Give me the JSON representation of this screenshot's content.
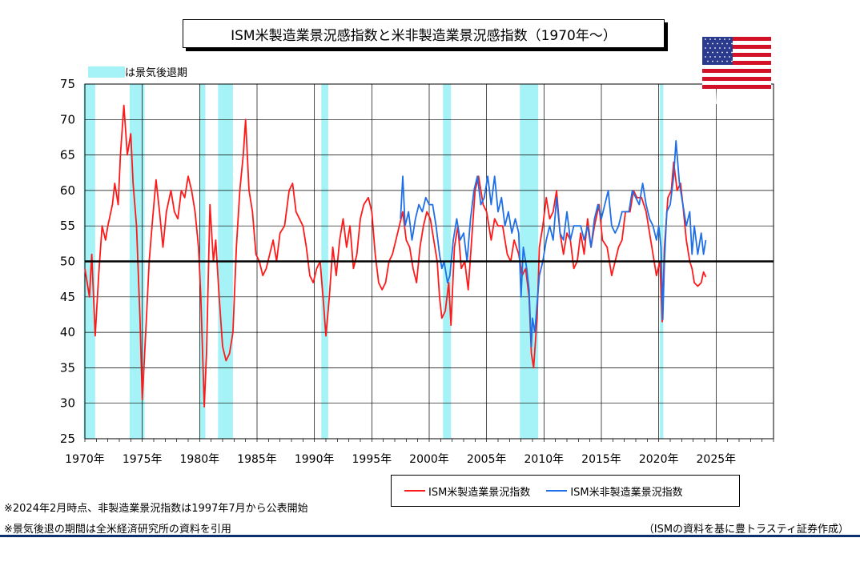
{
  "colors": {
    "manufacturing": "#ff1a1a",
    "non_manufacturing": "#1f6fe8",
    "recession": "#a6f3f7",
    "baseline": "#000000",
    "footer_bar": "#0c2f6e"
  },
  "icons": {
    "flag": "us-flag-icon"
  },
  "footnotes": {
    "note1": "※2024年2月時点、非製造業景況指数は1997年7月から公表開始",
    "note2": "※景気後退の期間は全米経済研究所の資料を引用",
    "source": "（ISMの資料を基に豊トラスティ証券作成）"
  },
  "chart_data": {
    "type": "line",
    "title": "ISM米製造業景況感指数と米非製造業景況感指数（1970年～）",
    "ylim": [
      25,
      75
    ],
    "yticks": [
      25,
      30,
      35,
      40,
      45,
      50,
      55,
      60,
      65,
      70,
      75
    ],
    "xlim": [
      1970,
      2030
    ],
    "xticks": [
      "1970年",
      "1975年",
      "1980年",
      "1985年",
      "1990年",
      "1995年",
      "2000年",
      "2005年",
      "2010年",
      "2015年",
      "2020年",
      "2025年"
    ],
    "grid": true,
    "reference_line": 50,
    "recession_legend": "は景気後退期",
    "recessions": [
      [
        1969.9,
        1970.9
      ],
      [
        1973.9,
        1975.2
      ],
      [
        1980.0,
        1980.5
      ],
      [
        1981.6,
        1982.9
      ],
      [
        1990.6,
        1991.2
      ],
      [
        2001.2,
        2001.9
      ],
      [
        2007.9,
        2009.5
      ],
      [
        2020.1,
        2020.4
      ]
    ],
    "series": [
      {
        "name": "ISM米製造業景況指数",
        "color": "#ff1a1a",
        "points": [
          [
            1970.0,
            49
          ],
          [
            1970.4,
            45
          ],
          [
            1970.6,
            51
          ],
          [
            1970.9,
            39.5
          ],
          [
            1971.2,
            48
          ],
          [
            1971.5,
            55
          ],
          [
            1971.8,
            53
          ],
          [
            1972.0,
            55
          ],
          [
            1972.4,
            58
          ],
          [
            1972.6,
            61
          ],
          [
            1972.9,
            58
          ],
          [
            1973.1,
            65
          ],
          [
            1973.4,
            72
          ],
          [
            1973.7,
            65
          ],
          [
            1974.0,
            68
          ],
          [
            1974.2,
            61
          ],
          [
            1974.5,
            55
          ],
          [
            1974.8,
            42
          ],
          [
            1975.0,
            30.5
          ],
          [
            1975.3,
            40
          ],
          [
            1975.6,
            50
          ],
          [
            1975.9,
            56
          ],
          [
            1976.2,
            61.5
          ],
          [
            1976.5,
            57
          ],
          [
            1976.8,
            52
          ],
          [
            1977.1,
            57
          ],
          [
            1977.5,
            60
          ],
          [
            1977.8,
            57
          ],
          [
            1978.1,
            56
          ],
          [
            1978.4,
            60
          ],
          [
            1978.7,
            59
          ],
          [
            1979.0,
            62
          ],
          [
            1979.3,
            60
          ],
          [
            1979.6,
            57
          ],
          [
            1979.9,
            52
          ],
          [
            1980.1,
            45
          ],
          [
            1980.4,
            29.5
          ],
          [
            1980.6,
            37
          ],
          [
            1980.9,
            58
          ],
          [
            1981.2,
            50
          ],
          [
            1981.4,
            53
          ],
          [
            1981.7,
            45
          ],
          [
            1982.0,
            38
          ],
          [
            1982.3,
            36
          ],
          [
            1982.6,
            37
          ],
          [
            1982.9,
            40
          ],
          [
            1983.2,
            52
          ],
          [
            1983.5,
            60
          ],
          [
            1983.8,
            65
          ],
          [
            1984.0,
            70
          ],
          [
            1984.3,
            60
          ],
          [
            1984.6,
            57
          ],
          [
            1984.9,
            51
          ],
          [
            1985.2,
            50
          ],
          [
            1985.5,
            48
          ],
          [
            1985.8,
            49
          ],
          [
            1986.1,
            51
          ],
          [
            1986.4,
            53
          ],
          [
            1986.7,
            50
          ],
          [
            1987.0,
            54
          ],
          [
            1987.4,
            55
          ],
          [
            1987.8,
            60
          ],
          [
            1988.1,
            61
          ],
          [
            1988.4,
            57
          ],
          [
            1988.7,
            56
          ],
          [
            1989.0,
            55
          ],
          [
            1989.3,
            52
          ],
          [
            1989.6,
            48
          ],
          [
            1989.9,
            47
          ],
          [
            1990.2,
            49
          ],
          [
            1990.5,
            50
          ],
          [
            1990.8,
            44
          ],
          [
            1991.0,
            39.5
          ],
          [
            1991.3,
            45
          ],
          [
            1991.6,
            52
          ],
          [
            1991.9,
            48
          ],
          [
            1992.2,
            53
          ],
          [
            1992.5,
            56
          ],
          [
            1992.8,
            52
          ],
          [
            1993.1,
            55
          ],
          [
            1993.4,
            49
          ],
          [
            1993.7,
            51
          ],
          [
            1994.0,
            56
          ],
          [
            1994.3,
            58
          ],
          [
            1994.7,
            59
          ],
          [
            1995.0,
            57
          ],
          [
            1995.3,
            51
          ],
          [
            1995.6,
            47
          ],
          [
            1995.9,
            46
          ],
          [
            1996.2,
            47
          ],
          [
            1996.5,
            50
          ],
          [
            1996.8,
            51
          ],
          [
            1997.1,
            53
          ],
          [
            1997.4,
            55
          ],
          [
            1997.7,
            57
          ],
          [
            1998.0,
            53
          ],
          [
            1998.3,
            52
          ],
          [
            1998.6,
            49
          ],
          [
            1998.9,
            47
          ],
          [
            1999.2,
            52
          ],
          [
            1999.5,
            55
          ],
          [
            1999.8,
            57
          ],
          [
            2000.1,
            56
          ],
          [
            2000.4,
            53
          ],
          [
            2000.7,
            50
          ],
          [
            2000.9,
            45
          ],
          [
            2001.1,
            42
          ],
          [
            2001.4,
            43
          ],
          [
            2001.7,
            47
          ],
          [
            2001.9,
            41
          ],
          [
            2002.2,
            52
          ],
          [
            2002.5,
            55
          ],
          [
            2002.8,
            49
          ],
          [
            2003.1,
            50
          ],
          [
            2003.4,
            46
          ],
          [
            2003.7,
            53
          ],
          [
            2004.0,
            60
          ],
          [
            2004.3,
            62
          ],
          [
            2004.7,
            58
          ],
          [
            2005.0,
            57
          ],
          [
            2005.4,
            53
          ],
          [
            2005.7,
            56
          ],
          [
            2006.0,
            55
          ],
          [
            2006.4,
            55
          ],
          [
            2006.8,
            51
          ],
          [
            2007.1,
            50
          ],
          [
            2007.4,
            53
          ],
          [
            2007.8,
            51
          ],
          [
            2008.1,
            48
          ],
          [
            2008.4,
            49
          ],
          [
            2008.7,
            45
          ],
          [
            2008.9,
            37
          ],
          [
            2009.1,
            35
          ],
          [
            2009.4,
            42
          ],
          [
            2009.6,
            52
          ],
          [
            2009.9,
            55
          ],
          [
            2010.2,
            59
          ],
          [
            2010.5,
            56
          ],
          [
            2010.8,
            57
          ],
          [
            2011.1,
            60
          ],
          [
            2011.4,
            54
          ],
          [
            2011.7,
            51
          ],
          [
            2012.0,
            54
          ],
          [
            2012.3,
            53
          ],
          [
            2012.6,
            49
          ],
          [
            2012.9,
            50
          ],
          [
            2013.2,
            54
          ],
          [
            2013.5,
            51
          ],
          [
            2013.8,
            56
          ],
          [
            2014.1,
            52
          ],
          [
            2014.4,
            55
          ],
          [
            2014.8,
            58
          ],
          [
            2015.1,
            53
          ],
          [
            2015.5,
            52
          ],
          [
            2015.9,
            48
          ],
          [
            2016.2,
            50
          ],
          [
            2016.5,
            52
          ],
          [
            2016.8,
            53
          ],
          [
            2017.1,
            57
          ],
          [
            2017.5,
            57
          ],
          [
            2017.8,
            60
          ],
          [
            2018.1,
            59
          ],
          [
            2018.5,
            59
          ],
          [
            2018.9,
            57
          ],
          [
            2019.2,
            54
          ],
          [
            2019.5,
            51
          ],
          [
            2019.8,
            48
          ],
          [
            2020.1,
            50
          ],
          [
            2020.3,
            41.5
          ],
          [
            2020.5,
            52
          ],
          [
            2020.8,
            59
          ],
          [
            2021.1,
            60
          ],
          [
            2021.3,
            64
          ],
          [
            2021.6,
            60
          ],
          [
            2021.9,
            61
          ],
          [
            2022.1,
            58
          ],
          [
            2022.4,
            53
          ],
          [
            2022.7,
            50
          ],
          [
            2022.9,
            49
          ],
          [
            2023.1,
            47
          ],
          [
            2023.4,
            46.5
          ],
          [
            2023.7,
            47
          ],
          [
            2023.9,
            48.5
          ],
          [
            2024.1,
            47.8
          ]
        ]
      },
      {
        "name": "ISM米非製造業景況指数",
        "color": "#1f6fe8",
        "points": [
          [
            1997.5,
            56
          ],
          [
            1997.7,
            62
          ],
          [
            1997.9,
            55
          ],
          [
            1998.2,
            57
          ],
          [
            1998.5,
            53
          ],
          [
            1998.8,
            56
          ],
          [
            1999.1,
            58
          ],
          [
            1999.4,
            57
          ],
          [
            1999.7,
            59
          ],
          [
            2000.0,
            58
          ],
          [
            2000.3,
            58
          ],
          [
            2000.6,
            55
          ],
          [
            2000.9,
            51
          ],
          [
            2001.1,
            49
          ],
          [
            2001.3,
            50
          ],
          [
            2001.6,
            47
          ],
          [
            2001.8,
            48
          ],
          [
            2002.1,
            53
          ],
          [
            2002.4,
            56
          ],
          [
            2002.7,
            53
          ],
          [
            2003.0,
            54
          ],
          [
            2003.3,
            50
          ],
          [
            2003.6,
            56
          ],
          [
            2003.9,
            60
          ],
          [
            2004.2,
            62
          ],
          [
            2004.5,
            58
          ],
          [
            2004.8,
            59
          ],
          [
            2005.1,
            62
          ],
          [
            2005.4,
            58
          ],
          [
            2005.7,
            62
          ],
          [
            2006.0,
            57
          ],
          [
            2006.3,
            59
          ],
          [
            2006.6,
            55
          ],
          [
            2006.9,
            57
          ],
          [
            2007.2,
            54
          ],
          [
            2007.5,
            56
          ],
          [
            2007.8,
            54
          ],
          [
            2008.0,
            45
          ],
          [
            2008.2,
            52
          ],
          [
            2008.5,
            49
          ],
          [
            2008.7,
            46
          ],
          [
            2008.9,
            38
          ],
          [
            2009.0,
            42
          ],
          [
            2009.2,
            40
          ],
          [
            2009.4,
            44
          ],
          [
            2009.6,
            48
          ],
          [
            2009.9,
            50
          ],
          [
            2010.2,
            53
          ],
          [
            2010.5,
            55
          ],
          [
            2010.8,
            53
          ],
          [
            2011.1,
            59
          ],
          [
            2011.4,
            54
          ],
          [
            2011.7,
            53
          ],
          [
            2012.0,
            57
          ],
          [
            2012.3,
            53
          ],
          [
            2012.6,
            55
          ],
          [
            2012.9,
            55
          ],
          [
            2013.2,
            55
          ],
          [
            2013.5,
            53
          ],
          [
            2013.8,
            55
          ],
          [
            2014.1,
            52
          ],
          [
            2014.4,
            56
          ],
          [
            2014.7,
            58
          ],
          [
            2015.0,
            56
          ],
          [
            2015.3,
            58
          ],
          [
            2015.6,
            60
          ],
          [
            2015.9,
            55
          ],
          [
            2016.2,
            54
          ],
          [
            2016.5,
            55
          ],
          [
            2016.8,
            57
          ],
          [
            2017.1,
            57
          ],
          [
            2017.4,
            57
          ],
          [
            2017.7,
            60
          ],
          [
            2018.0,
            59
          ],
          [
            2018.3,
            58
          ],
          [
            2018.6,
            61
          ],
          [
            2018.9,
            58
          ],
          [
            2019.2,
            56
          ],
          [
            2019.5,
            55
          ],
          [
            2019.8,
            53
          ],
          [
            2020.0,
            55
          ],
          [
            2020.2,
            52
          ],
          [
            2020.35,
            41.8
          ],
          [
            2020.5,
            50
          ],
          [
            2020.7,
            57
          ],
          [
            2021.0,
            58
          ],
          [
            2021.3,
            62
          ],
          [
            2021.5,
            67
          ],
          [
            2021.8,
            61
          ],
          [
            2022.1,
            58
          ],
          [
            2022.4,
            55
          ],
          [
            2022.7,
            57
          ],
          [
            2022.9,
            51
          ],
          [
            2023.1,
            55
          ],
          [
            2023.4,
            51
          ],
          [
            2023.7,
            54
          ],
          [
            2023.9,
            51
          ],
          [
            2024.1,
            53
          ]
        ]
      }
    ]
  }
}
